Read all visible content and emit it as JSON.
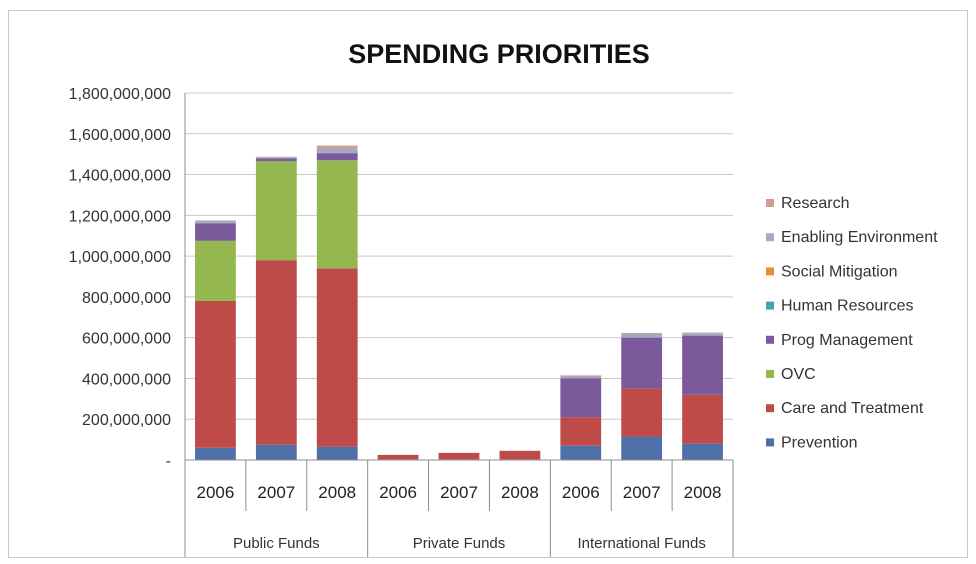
{
  "chart_data": {
    "type": "bar",
    "stacked": true,
    "title": "SPENDING PRIORITIES",
    "xlabel": "",
    "ylabel": "",
    "ylim": [
      0,
      1800000000
    ],
    "y_ticks": [
      0,
      200000000,
      400000000,
      600000000,
      800000000,
      1000000000,
      1200000000,
      1400000000,
      1600000000,
      1800000000
    ],
    "y_tick_labels": [
      "-",
      "200,000,000",
      "400,000,000",
      "600,000,000",
      "800,000,000",
      "1,000,000,000",
      "1,200,000,000",
      "1,400,000,000",
      "1,600,000,000",
      "1,800,000,000"
    ],
    "grid": true,
    "legend_position": "right",
    "categories": [
      "2006",
      "2007",
      "2008",
      "2006",
      "2007",
      "2008",
      "2006",
      "2007",
      "2008"
    ],
    "groups": [
      {
        "label": "Public Funds",
        "span": [
          0,
          2
        ]
      },
      {
        "label": "Private Funds",
        "span": [
          3,
          5
        ]
      },
      {
        "label": "International Funds",
        "span": [
          6,
          8
        ]
      }
    ],
    "series": [
      {
        "name": "Prevention",
        "color": "#4f6fa8",
        "values": [
          60000000,
          75000000,
          65000000,
          3000000,
          3000000,
          3000000,
          70000000,
          115000000,
          80000000
        ]
      },
      {
        "name": "Care and Treatment",
        "color": "#be4b48",
        "values": [
          720000000,
          905000000,
          875000000,
          22000000,
          32000000,
          42000000,
          140000000,
          235000000,
          240000000
        ]
      },
      {
        "name": "OVC",
        "color": "#94b84f",
        "values": [
          295000000,
          485000000,
          530000000,
          0,
          0,
          0,
          0,
          0,
          0
        ]
      },
      {
        "name": "Prog Management",
        "color": "#7a5a9a",
        "values": [
          85000000,
          15000000,
          35000000,
          0,
          0,
          0,
          190000000,
          250000000,
          290000000
        ]
      },
      {
        "name": "Human Resources",
        "color": "#45a3b8",
        "values": [
          0,
          0,
          0,
          0,
          0,
          0,
          0,
          0,
          0
        ]
      },
      {
        "name": "Social Mitigation",
        "color": "#e58f3a",
        "values": [
          0,
          0,
          0,
          0,
          0,
          0,
          0,
          0,
          0
        ]
      },
      {
        "name": "Enabling Environment",
        "color": "#a4a9bd",
        "values": [
          12000000,
          5000000,
          25000000,
          0,
          0,
          0,
          12000000,
          20000000,
          12000000
        ]
      },
      {
        "name": "Research",
        "color": "#d69993",
        "values": [
          3000000,
          2000000,
          12000000,
          0,
          0,
          0,
          3000000,
          3000000,
          3000000
        ]
      }
    ],
    "legend_order": [
      "Research",
      "Enabling Environment",
      "Social Mitigation",
      "Human Resources",
      "Prog Management",
      "OVC",
      "Care and Treatment",
      "Prevention"
    ]
  }
}
